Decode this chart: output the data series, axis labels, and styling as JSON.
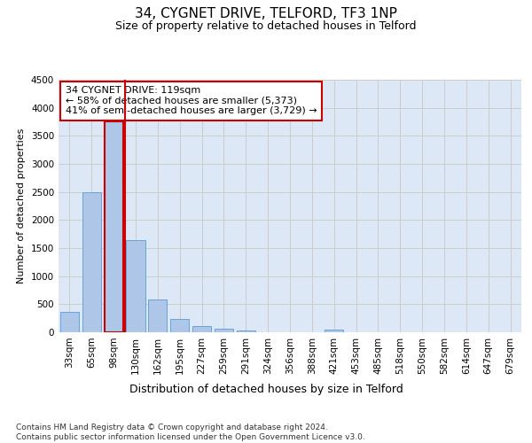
{
  "title": "34, CYGNET DRIVE, TELFORD, TF3 1NP",
  "subtitle": "Size of property relative to detached houses in Telford",
  "xlabel": "Distribution of detached houses by size in Telford",
  "ylabel": "Number of detached properties",
  "categories": [
    "33sqm",
    "65sqm",
    "98sqm",
    "130sqm",
    "162sqm",
    "195sqm",
    "227sqm",
    "259sqm",
    "291sqm",
    "324sqm",
    "356sqm",
    "388sqm",
    "421sqm",
    "453sqm",
    "485sqm",
    "518sqm",
    "550sqm",
    "582sqm",
    "614sqm",
    "647sqm",
    "679sqm"
  ],
  "values": [
    370,
    2500,
    3750,
    1640,
    580,
    230,
    105,
    60,
    30,
    0,
    0,
    0,
    50,
    0,
    0,
    0,
    0,
    0,
    0,
    0,
    0
  ],
  "bar_color": "#aec6e8",
  "bar_edgecolor": "#5b9bd5",
  "highlight_color": "#cc0000",
  "highlight_index": 2,
  "annotation_text": "34 CYGNET DRIVE: 119sqm\n← 58% of detached houses are smaller (5,373)\n41% of semi-detached houses are larger (3,729) →",
  "annotation_box_color": "#ffffff",
  "annotation_box_edgecolor": "#cc0000",
  "ylim": [
    0,
    4500
  ],
  "yticks": [
    0,
    500,
    1000,
    1500,
    2000,
    2500,
    3000,
    3500,
    4000,
    4500
  ],
  "grid_color": "#cccccc",
  "bg_color": "#dce8f5",
  "footer_text": "Contains HM Land Registry data © Crown copyright and database right 2024.\nContains public sector information licensed under the Open Government Licence v3.0.",
  "title_fontsize": 11,
  "subtitle_fontsize": 9,
  "xlabel_fontsize": 9,
  "ylabel_fontsize": 8,
  "tick_fontsize": 7.5,
  "footer_fontsize": 6.5
}
